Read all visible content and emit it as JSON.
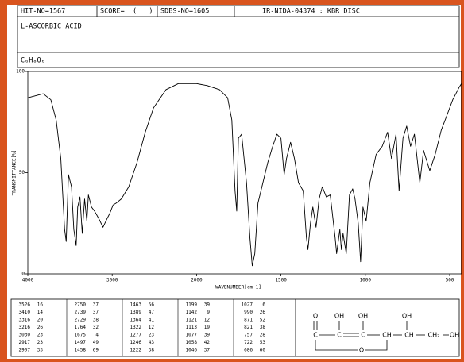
{
  "header": {
    "hit": "HIT-NO=1567",
    "score": "SCORE=  (   )",
    "sdbs": "SDBS-NO=1605",
    "method": "IR-NIDA-04374 : KBR DISC",
    "name": "L-ASCORBIC ACID",
    "formula": "C₆H₈O₆"
  },
  "chart_data": {
    "type": "line",
    "color": "#000000",
    "xlabel": "WAVENUMBER[cm-1]",
    "ylabel": "TRANSMITTANCE[%]",
    "xlim": [
      4000,
      430
    ],
    "xticks": [
      4000,
      3000,
      2000,
      1500,
      1000,
      500
    ],
    "ylim": [
      0,
      100
    ],
    "yticks": [
      0,
      50,
      100
    ],
    "x": [
      4000,
      3818,
      3727,
      3664,
      3609,
      3564,
      3545,
      3518,
      3482,
      3455,
      3427,
      3409,
      3382,
      3355,
      3327,
      3300,
      3282,
      3245,
      3209,
      3155,
      3109,
      3064,
      3027,
      2990,
      2951,
      2892,
      2804,
      2706,
      2608,
      2510,
      2363,
      2216,
      2000,
      1937,
      1864,
      1816,
      1791,
      1772,
      1762,
      1752,
      1733,
      1704,
      1684,
      1670,
      1655,
      1636,
      1607,
      1578,
      1549,
      1524,
      1500,
      1481,
      1467,
      1443,
      1420,
      1396,
      1368,
      1349,
      1340,
      1325,
      1311,
      1292,
      1274,
      1255,
      1231,
      1208,
      1179,
      1170,
      1151,
      1142,
      1132,
      1113,
      1094,
      1075,
      1061,
      1042,
      1028,
      1014,
      995,
      973,
      936,
      900,
      868,
      845,
      818,
      800,
      777,
      755,
      732,
      709,
      677,
      655,
      618,
      586,
      550,
      518,
      482,
      445,
      430
    ],
    "values": [
      87,
      89,
      86,
      76,
      57,
      22,
      16,
      49,
      43,
      22,
      14,
      33,
      38,
      20,
      37,
      26,
      39,
      33,
      31,
      27,
      23,
      27,
      30,
      34,
      35,
      37,
      43,
      55,
      70,
      82,
      91,
      94,
      94,
      93,
      91,
      87,
      76,
      41,
      31,
      67,
      69,
      45,
      18,
      4,
      10,
      35,
      45,
      55,
      63,
      69,
      67,
      49,
      57,
      65,
      57,
      45,
      41,
      18,
      12,
      25,
      33,
      23,
      37,
      43,
      38,
      39,
      18,
      10,
      22,
      12,
      20,
      10,
      39,
      42,
      37,
      25,
      6,
      33,
      26,
      45,
      59,
      63,
      70,
      57,
      69,
      41,
      67,
      73,
      63,
      69,
      45,
      61,
      51,
      59,
      71,
      78,
      86,
      92,
      94
    ]
  },
  "peaks": [
    [
      [
        3526,
        16
      ],
      [
        3410,
        14
      ],
      [
        3316,
        20
      ],
      [
        3216,
        26
      ],
      [
        3030,
        23
      ],
      [
        2917,
        23
      ],
      [
        2907,
        33
      ]
    ],
    [
      [
        2750,
        37
      ],
      [
        2739,
        37
      ],
      [
        2729,
        38
      ],
      [
        1764,
        32
      ],
      [
        1675,
        4
      ],
      [
        1497,
        49
      ],
      [
        1458,
        69
      ]
    ],
    [
      [
        1463,
        56
      ],
      [
        1389,
        47
      ],
      [
        1364,
        41
      ],
      [
        1322,
        12
      ],
      [
        1277,
        23
      ],
      [
        1246,
        43
      ],
      [
        1222,
        38
      ]
    ],
    [
      [
        1199,
        39
      ],
      [
        1142,
        9
      ],
      [
        1121,
        12
      ],
      [
        1113,
        19
      ],
      [
        1077,
        39
      ],
      [
        1058,
        42
      ],
      [
        1046,
        37
      ]
    ],
    [
      [
        1027,
        6
      ],
      [
        990,
        26
      ],
      [
        871,
        52
      ],
      [
        821,
        38
      ],
      [
        757,
        28
      ],
      [
        722,
        53
      ],
      [
        686,
        60
      ]
    ]
  ],
  "structure": {
    "labels": [
      "O",
      "OH",
      "OH",
      "OH",
      "C",
      "C",
      "C",
      "CH",
      "CH",
      "CH₂",
      "OH",
      "O"
    ]
  }
}
